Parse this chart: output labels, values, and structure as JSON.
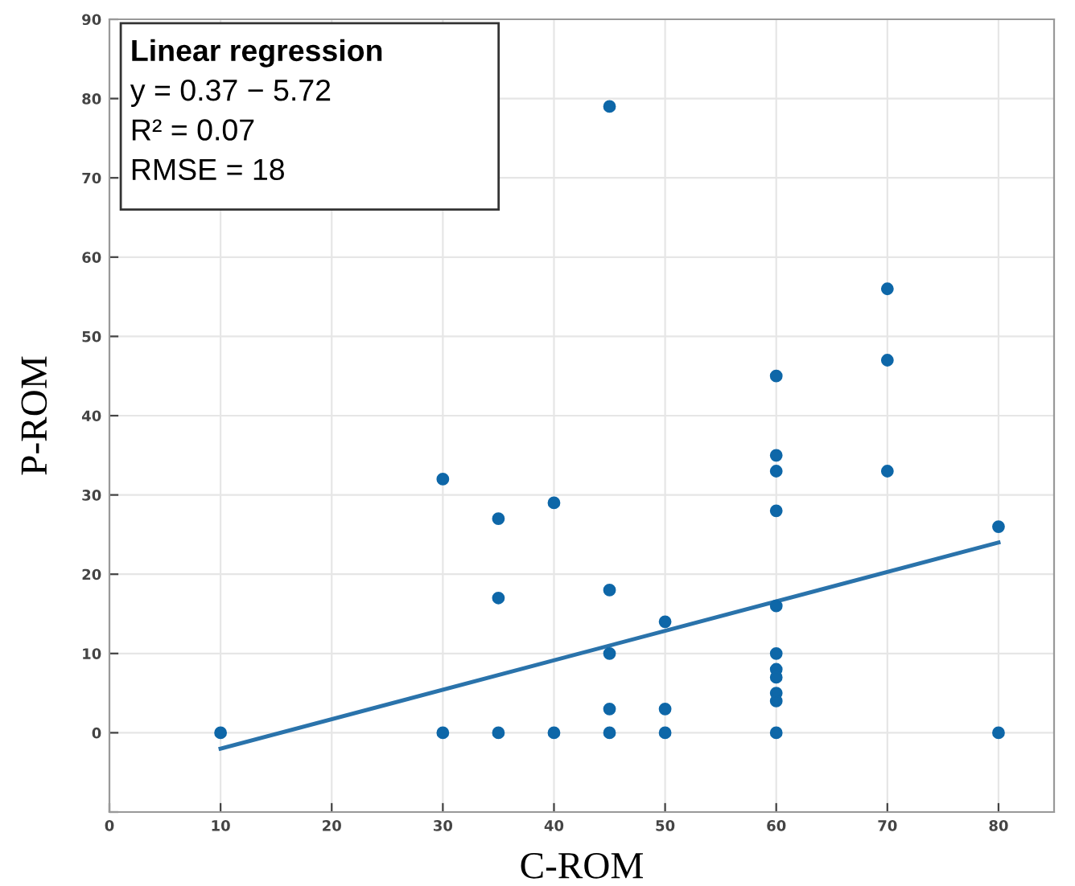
{
  "chart_data": {
    "type": "scatter",
    "xlabel": "C-ROM",
    "ylabel": "P-ROM",
    "annotations": [
      "Linear regression",
      "y = 0.37 − 5.72",
      "R² = 0.07",
      "RMSE = 18"
    ],
    "xlim": [
      0,
      85
    ],
    "xticks": [
      0,
      10,
      20,
      30,
      40,
      50,
      60,
      70,
      80
    ],
    "ylim": [
      -10,
      90
    ],
    "yticks": [
      {
        "value": -10,
        "label": null
      },
      0,
      10,
      20,
      30,
      40,
      50,
      60,
      70,
      80,
      90
    ],
    "grid": true,
    "marker": "circle",
    "series": [
      {
        "color": "#0e67a8",
        "x": [
          10,
          30,
          30,
          35,
          35,
          35,
          40,
          40,
          45,
          45,
          45,
          45,
          45,
          50,
          50,
          50,
          60,
          60,
          60,
          60,
          60,
          60,
          60,
          60,
          60,
          60,
          60,
          70,
          70,
          70,
          80,
          80
        ],
        "values": [
          0,
          0,
          32,
          27,
          17,
          0,
          29,
          0,
          79,
          18,
          10,
          3,
          0,
          14,
          3,
          0,
          45,
          35,
          33,
          28,
          16,
          10,
          8,
          7,
          5,
          4,
          0,
          56,
          47,
          33,
          26,
          0
        ]
      },
      {
        "type": "line",
        "color": "#2a73ab",
        "x": [
          10,
          80
        ],
        "values": [
          -2,
          24
        ],
        "marker": "none",
        "line_style": "solid"
      }
    ]
  }
}
